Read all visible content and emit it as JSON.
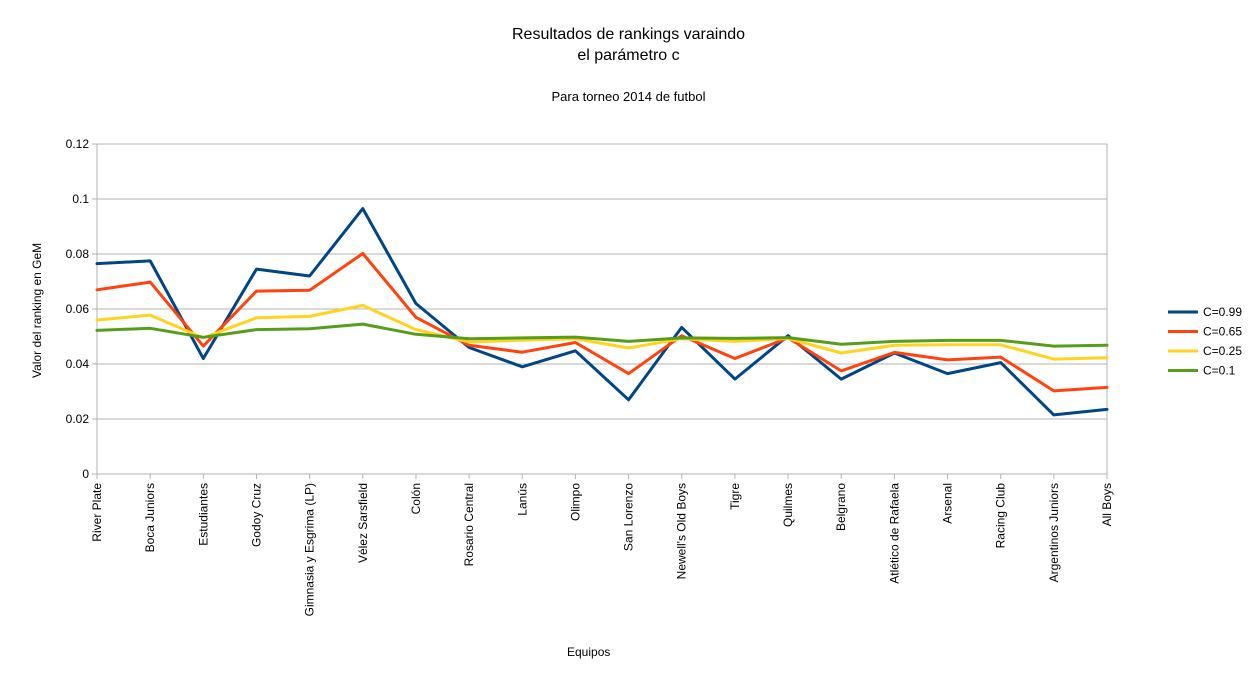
{
  "chart_data": {
    "type": "line",
    "title_line1": "Resultados de rankings varaindo",
    "title_line2": "el parámetro c",
    "subtitle": "Para torneo 2014 de futbol",
    "xlabel": "Equipos",
    "ylabel": "Valor del ranking en GeM",
    "ylim": [
      0,
      0.12
    ],
    "yticks": [
      "0",
      "0.02",
      "0.04",
      "0.06",
      "0.08",
      "0.1",
      "0.12"
    ],
    "grid": "horizontal",
    "legend_position": "right",
    "categories": [
      "River Plate",
      "Boca Juniors",
      "Estudiantes",
      "Godoy Cruz",
      "Gimnasia y Esgrima (LP)",
      "Vélez Sarsfield",
      "Colón",
      "Rosario Central",
      "Lanús",
      "Olimpo",
      "San Lorenzo",
      "Newell's Old Boys",
      "Tigre",
      "Quilmes",
      "Belgrano",
      "Atlético de Rafaela",
      "Arsenal",
      "Racing Club",
      "Argentinos Juniors",
      "All Boys"
    ],
    "series": [
      {
        "name": "C=0.99",
        "color": "#004586",
        "values": [
          0.0765,
          0.0775,
          0.042,
          0.0745,
          0.072,
          0.0965,
          0.062,
          0.046,
          0.039,
          0.0448,
          0.027,
          0.0533,
          0.0345,
          0.0503,
          0.0345,
          0.044,
          0.0365,
          0.0405,
          0.0215,
          0.0235
        ]
      },
      {
        "name": "C=0.65",
        "color": "#ff420e",
        "values": [
          0.067,
          0.0698,
          0.0465,
          0.0665,
          0.0668,
          0.0802,
          0.057,
          0.0468,
          0.0443,
          0.0478,
          0.0365,
          0.0503,
          0.042,
          0.0495,
          0.0375,
          0.0442,
          0.0415,
          0.0425,
          0.0302,
          0.0315
        ]
      },
      {
        "name": "C=0.25",
        "color": "#ffd320",
        "values": [
          0.056,
          0.0578,
          0.0495,
          0.0568,
          0.0573,
          0.0613,
          0.0525,
          0.048,
          0.0487,
          0.0492,
          0.0458,
          0.0492,
          0.0482,
          0.0493,
          0.044,
          0.0468,
          0.047,
          0.047,
          0.0418,
          0.0423
        ]
      },
      {
        "name": "C=0.1",
        "color": "#579d1c",
        "values": [
          0.0522,
          0.053,
          0.0497,
          0.0525,
          0.0528,
          0.0545,
          0.0508,
          0.0492,
          0.0495,
          0.0498,
          0.0482,
          0.0495,
          0.0493,
          0.0496,
          0.0472,
          0.0482,
          0.0486,
          0.0486,
          0.0465,
          0.0468
        ]
      }
    ]
  }
}
